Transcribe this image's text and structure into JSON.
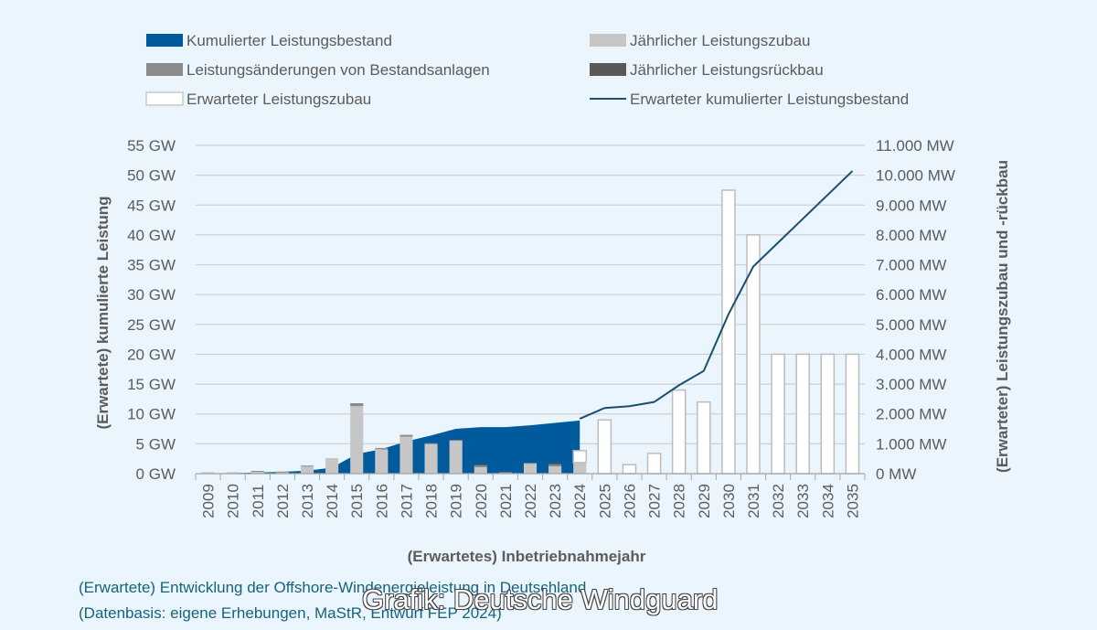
{
  "chart_data": {
    "type": "bar",
    "categories": [
      "2009",
      "2010",
      "2011",
      "2012",
      "2013",
      "2014",
      "2015",
      "2016",
      "2017",
      "2018",
      "2019",
      "2020",
      "2021",
      "2022",
      "2023",
      "2024",
      "2025",
      "2026",
      "2027",
      "2028",
      "2029",
      "2030",
      "2031",
      "2032",
      "2033",
      "2034",
      "2035"
    ],
    "xlabel": "(Erwartetes) Inbetriebnahmejahr",
    "ylabel_left": "(Erwartete) kumulierte Leistung",
    "ylabel_right": "(Erwarteter) Leistungszubau und -rückbau",
    "ylim_left": [
      0,
      55
    ],
    "ylim_right": [
      0,
      11000
    ],
    "yticks_left": [
      "0 GW",
      "5 GW",
      "10 GW",
      "15 GW",
      "20 GW",
      "25 GW",
      "30 GW",
      "35 GW",
      "40 GW",
      "45 GW",
      "50 GW",
      "55 GW"
    ],
    "yticks_right": [
      "0 MW",
      "1.000 MW",
      "2.000 MW",
      "3.000 MW",
      "4.000 MW",
      "5.000 MW",
      "6.000 MW",
      "7.000 MW",
      "8.000 MW",
      "9.000 MW",
      "10.000 MW",
      "11.000 MW"
    ],
    "grid": true,
    "legend_position": "top",
    "series": [
      {
        "name": "Kumulierter Leistungsbestand",
        "kind": "area",
        "axis": "left",
        "unit": "GW",
        "color": "#005a9c",
        "x": [
          "2009",
          "2010",
          "2011",
          "2012",
          "2013",
          "2014",
          "2015",
          "2016",
          "2017",
          "2018",
          "2019",
          "2020",
          "2021",
          "2022",
          "2023",
          "2024"
        ],
        "values": [
          0.05,
          0.1,
          0.2,
          0.3,
          0.5,
          1.0,
          3.3,
          4.1,
          5.4,
          6.4,
          7.5,
          7.8,
          7.8,
          8.1,
          8.5,
          8.9
        ]
      },
      {
        "name": "Jährlicher Leistungszubau",
        "kind": "bar",
        "axis": "right",
        "unit": "MW",
        "color": "#c6c6c6",
        "x": [
          "2009",
          "2010",
          "2011",
          "2012",
          "2013",
          "2014",
          "2015",
          "2016",
          "2017",
          "2018",
          "2019",
          "2020",
          "2021",
          "2022",
          "2023",
          "2024"
        ],
        "values": [
          50,
          50,
          80,
          60,
          240,
          520,
          2260,
          820,
          1240,
          1000,
          1110,
          220,
          40,
          340,
          250,
          370
        ]
      },
      {
        "name": "Leistungsänderungen von Bestandsanlagen",
        "kind": "bar",
        "axis": "right",
        "unit": "MW",
        "color": "#8c8c8c",
        "x": [
          "2009",
          "2010",
          "2011",
          "2012",
          "2013",
          "2014",
          "2015",
          "2016",
          "2017",
          "2018",
          "2019",
          "2020",
          "2021",
          "2022",
          "2023",
          "2024"
        ],
        "values": [
          0,
          0,
          10,
          10,
          30,
          0,
          60,
          40,
          60,
          20,
          20,
          60,
          10,
          20,
          60,
          0
        ]
      },
      {
        "name": "Jährlicher Leistungsrückbau",
        "kind": "bar",
        "axis": "right",
        "unit": "MW",
        "color": "#595959",
        "x": [
          "2009",
          "2010",
          "2011",
          "2012",
          "2013",
          "2014",
          "2015",
          "2016",
          "2017",
          "2018",
          "2019",
          "2020",
          "2021",
          "2022",
          "2023",
          "2024"
        ],
        "values": [
          0,
          0,
          0,
          0,
          0,
          0,
          30,
          0,
          0,
          0,
          0,
          30,
          0,
          0,
          40,
          0
        ]
      },
      {
        "name": "Erwarteter Leistungszubau",
        "kind": "bar",
        "axis": "right",
        "unit": "MW",
        "color": "#ffffff",
        "x": [
          "2024",
          "2025",
          "2026",
          "2027",
          "2028",
          "2029",
          "2030",
          "2031",
          "2032",
          "2033",
          "2034",
          "2035"
        ],
        "values": [
          400,
          1800,
          300,
          680,
          2800,
          2400,
          9500,
          8000,
          4000,
          4000,
          4000,
          4000
        ]
      },
      {
        "name": "Erwarteter kumulierter Leistungsbestand",
        "kind": "line",
        "axis": "left",
        "unit": "GW",
        "color": "#1a4f6e",
        "x": [
          "2024",
          "2025",
          "2026",
          "2027",
          "2028",
          "2029",
          "2030",
          "2031",
          "2032",
          "2033",
          "2034",
          "2035"
        ],
        "values": [
          9.2,
          11.0,
          11.3,
          12.0,
          14.8,
          17.2,
          26.7,
          34.7,
          38.7,
          42.7,
          46.7,
          50.7
        ]
      }
    ]
  },
  "legend": [
    {
      "label": "Kumulierter Leistungsbestand",
      "icon": "filled-area-swatch",
      "color": "#005a9c"
    },
    {
      "label": "Jährlicher Leistungszubau",
      "icon": "light-gray-bar-swatch",
      "color": "#c6c6c6"
    },
    {
      "label": "Leistungsänderungen von Bestandsanlagen",
      "icon": "mid-gray-bar-swatch",
      "color": "#8c8c8c"
    },
    {
      "label": "Jährlicher Leistungsrückbau",
      "icon": "dark-gray-bar-swatch",
      "color": "#595959"
    },
    {
      "label": "Erwarteter Leistungszubau",
      "icon": "white-bar-swatch",
      "color": "#ffffff"
    },
    {
      "label": "Erwarteter kumulierter Leistungsbestand",
      "icon": "line-swatch",
      "color": "#1a4f6e"
    }
  ],
  "caption": {
    "line1": "(Erwartete) Entwicklung der Offshore-Windenergieleistung in Deutschland",
    "line2": "(Datenbasis: eigene Erhebungen, MaStR, Entwurf FEP 2024)"
  },
  "watermark": "Grafik: Deutsche Windguard",
  "colors": {
    "background": "#eaf5fd",
    "grid": "#d0d0d0",
    "text": "#5c5c5c",
    "caption": "#17627e",
    "bar_outline": "#bdbdbd"
  }
}
